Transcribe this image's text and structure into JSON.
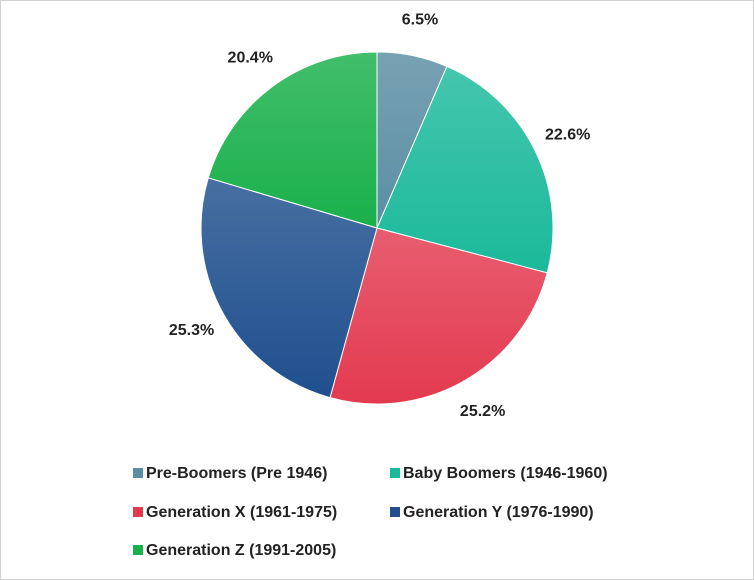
{
  "chart_data": {
    "type": "pie",
    "categories": [
      "Pre-Boomers (Pre 1946)",
      "Baby Boomers (1946-1960)",
      "Generation X (1961-1975)",
      "Generation Y (1976-1990)",
      "Generation Z (1991-2005)"
    ],
    "values": [
      6.5,
      22.6,
      25.2,
      25.3,
      20.4
    ],
    "value_labels": [
      "6.5%",
      "22.6%",
      "25.2%",
      "25.3%",
      "20.4%"
    ],
    "colors": [
      "#5a8ea2",
      "#1bb99b",
      "#e33a50",
      "#1f4f8e",
      "#19b04b"
    ],
    "legend": "bottom"
  }
}
